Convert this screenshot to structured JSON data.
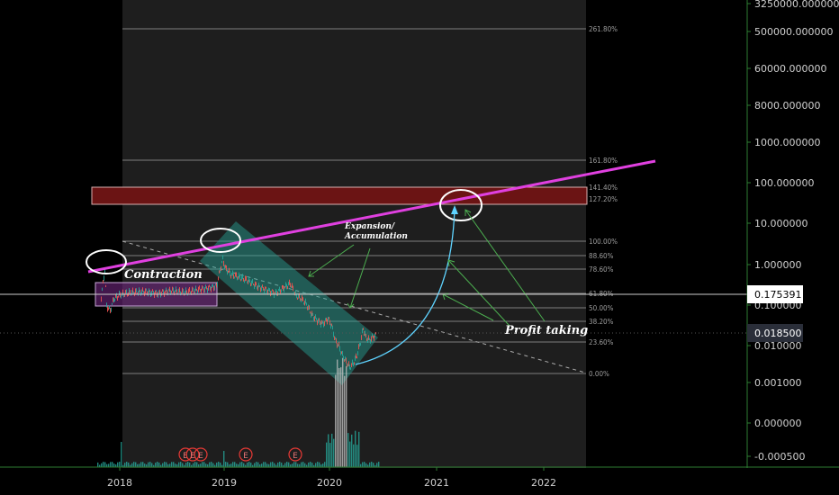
{
  "chart_data": {
    "type": "line",
    "y_scale": "log",
    "x_axis_labels": [
      "2018",
      "2019",
      "2020",
      "2021",
      "2022"
    ],
    "y_axis_labels": [
      "3250000.000000",
      "500000.000000",
      "60000.000000",
      "8000.000000",
      "1000.000000",
      "100.000000",
      "10.000000",
      "1.000000",
      "0.100000",
      "0.010000",
      "0.001000",
      "0.000000",
      "-0.000500"
    ],
    "fib_levels": [
      "261.80%",
      "161.80%",
      "141.40%",
      "127.20%",
      "100.00%",
      "88.60%",
      "78.60%",
      "61.80%",
      "50.00%",
      "38.20%",
      "23.60%",
      "0.00%"
    ],
    "price_tags": [
      {
        "value": "0.175391",
        "style": "white"
      },
      {
        "value": "0.018500",
        "style": "dark"
      }
    ],
    "annotations": {
      "contraction": "Contraction",
      "expansion_line1": "Expansion/",
      "expansion_line2": "Accumulation",
      "profit_taking": "Profit taking"
    },
    "event_marker_label": "E",
    "event_marker_count": 5,
    "colors": {
      "background": "#000000",
      "fib_zone": "#1e1e1e",
      "trendline": "#e040e0",
      "resistance_zone": "#7a1a1a",
      "accumulation_box": "#8a2a9a",
      "channel": "#26a69a",
      "candles_up": "#26a69a",
      "candles_down": "#ef5350",
      "arrows": "#4caf50",
      "projection": "#5fd3ff"
    }
  }
}
